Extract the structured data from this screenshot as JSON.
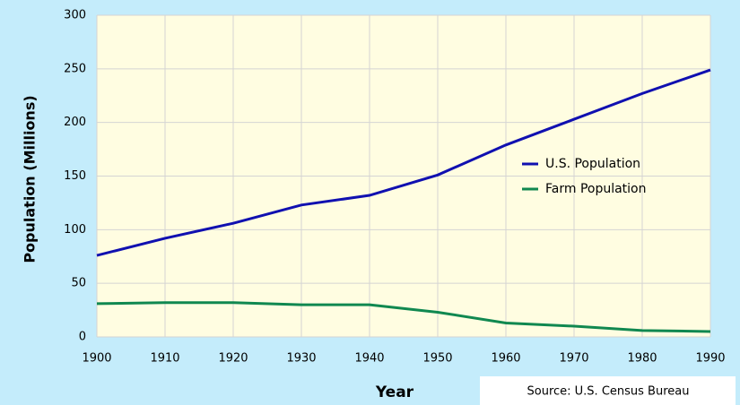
{
  "chart_data": {
    "type": "line",
    "x_label": "Year",
    "y_label": "Population (Millions)",
    "annotation": "Source: U.S. Census Bureau",
    "x": [
      1900,
      1910,
      1920,
      1930,
      1940,
      1950,
      1960,
      1970,
      1980,
      1990
    ],
    "series": [
      {
        "name": "U.S. Population",
        "color": "#1010b0",
        "values": [
          76,
          92,
          106,
          123,
          132,
          151,
          179,
          203,
          227,
          249
        ]
      },
      {
        "name": "Farm Population",
        "color": "#108850",
        "values": [
          31,
          32,
          32,
          30,
          30,
          23,
          13,
          10,
          6,
          5
        ]
      }
    ],
    "xlim": [
      1900,
      1990
    ],
    "xticks": [
      1900,
      1910,
      1920,
      1930,
      1940,
      1950,
      1960,
      1970,
      1980,
      1990
    ],
    "ylim": [
      0,
      300
    ],
    "yticks": [
      0,
      50,
      100,
      150,
      200,
      250,
      300
    ],
    "grid": true,
    "legend": "right"
  }
}
